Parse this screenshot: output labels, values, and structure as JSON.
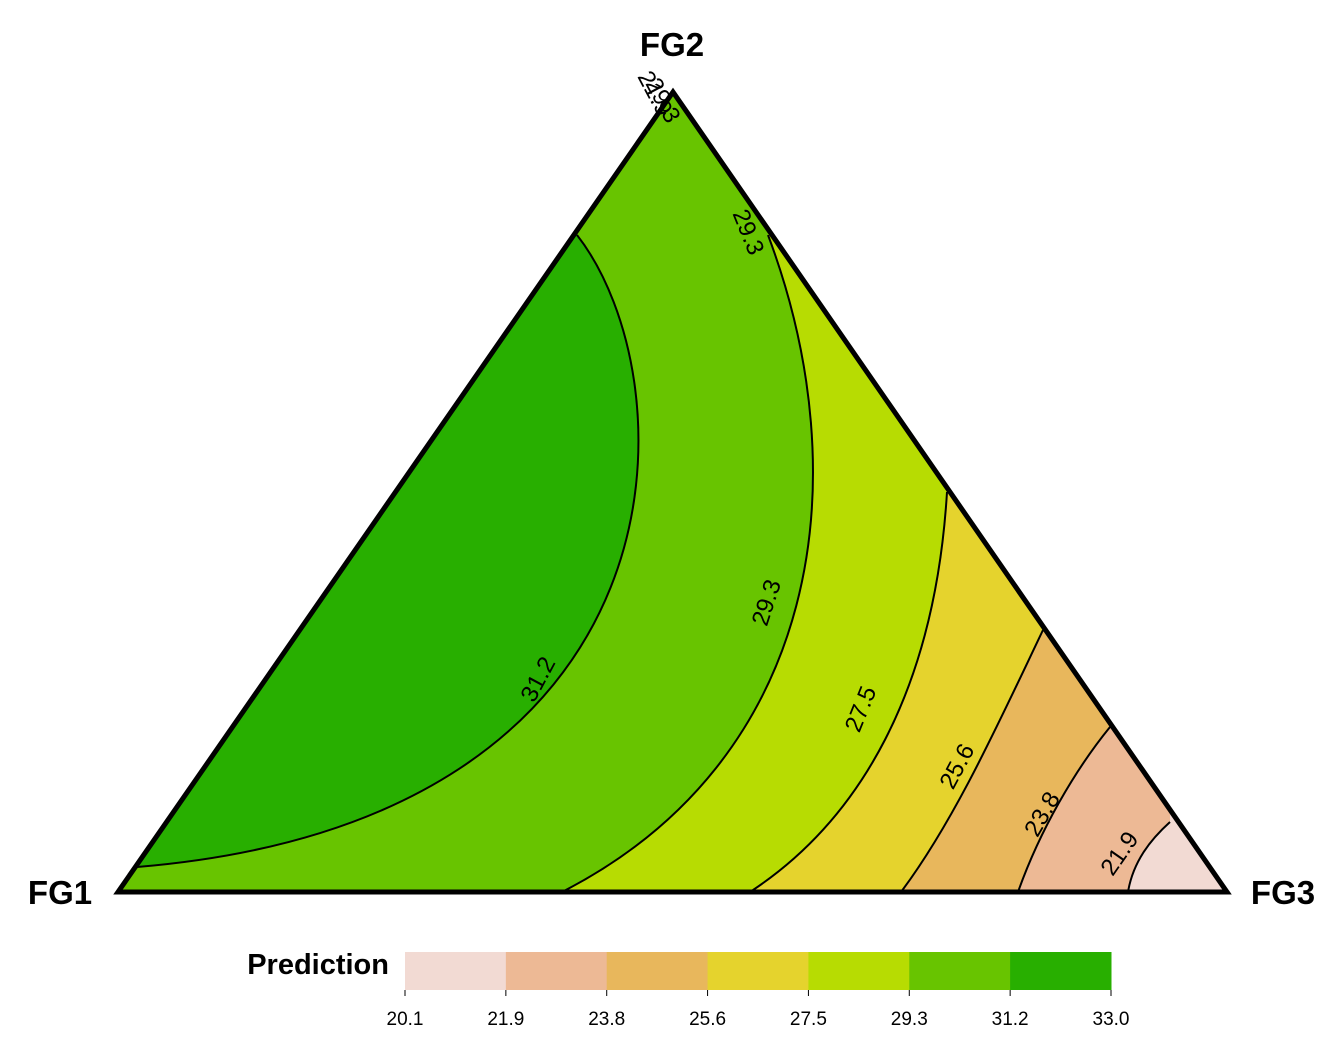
{
  "chart_data": {
    "type": "ternary-contour",
    "vertices": {
      "left": "FG1",
      "top": "FG2",
      "right": "FG3"
    },
    "legend": {
      "title": "Prediction",
      "breaks": [
        "20.1",
        "21.9",
        "23.8",
        "25.6",
        "27.5",
        "29.3",
        "31.2",
        "33.0"
      ],
      "colors": [
        "#f2dad3",
        "#edb995",
        "#e8b75c",
        "#e5d32d",
        "#b7dc02",
        "#68c400",
        "#28af00"
      ]
    },
    "contour_labels": [
      "31.2",
      "29.3",
      "29.3",
      "27.5",
      "25.6",
      "23.8",
      "21.9"
    ],
    "top_vertex_label_cluster": [
      "21.9",
      "29.3"
    ]
  }
}
